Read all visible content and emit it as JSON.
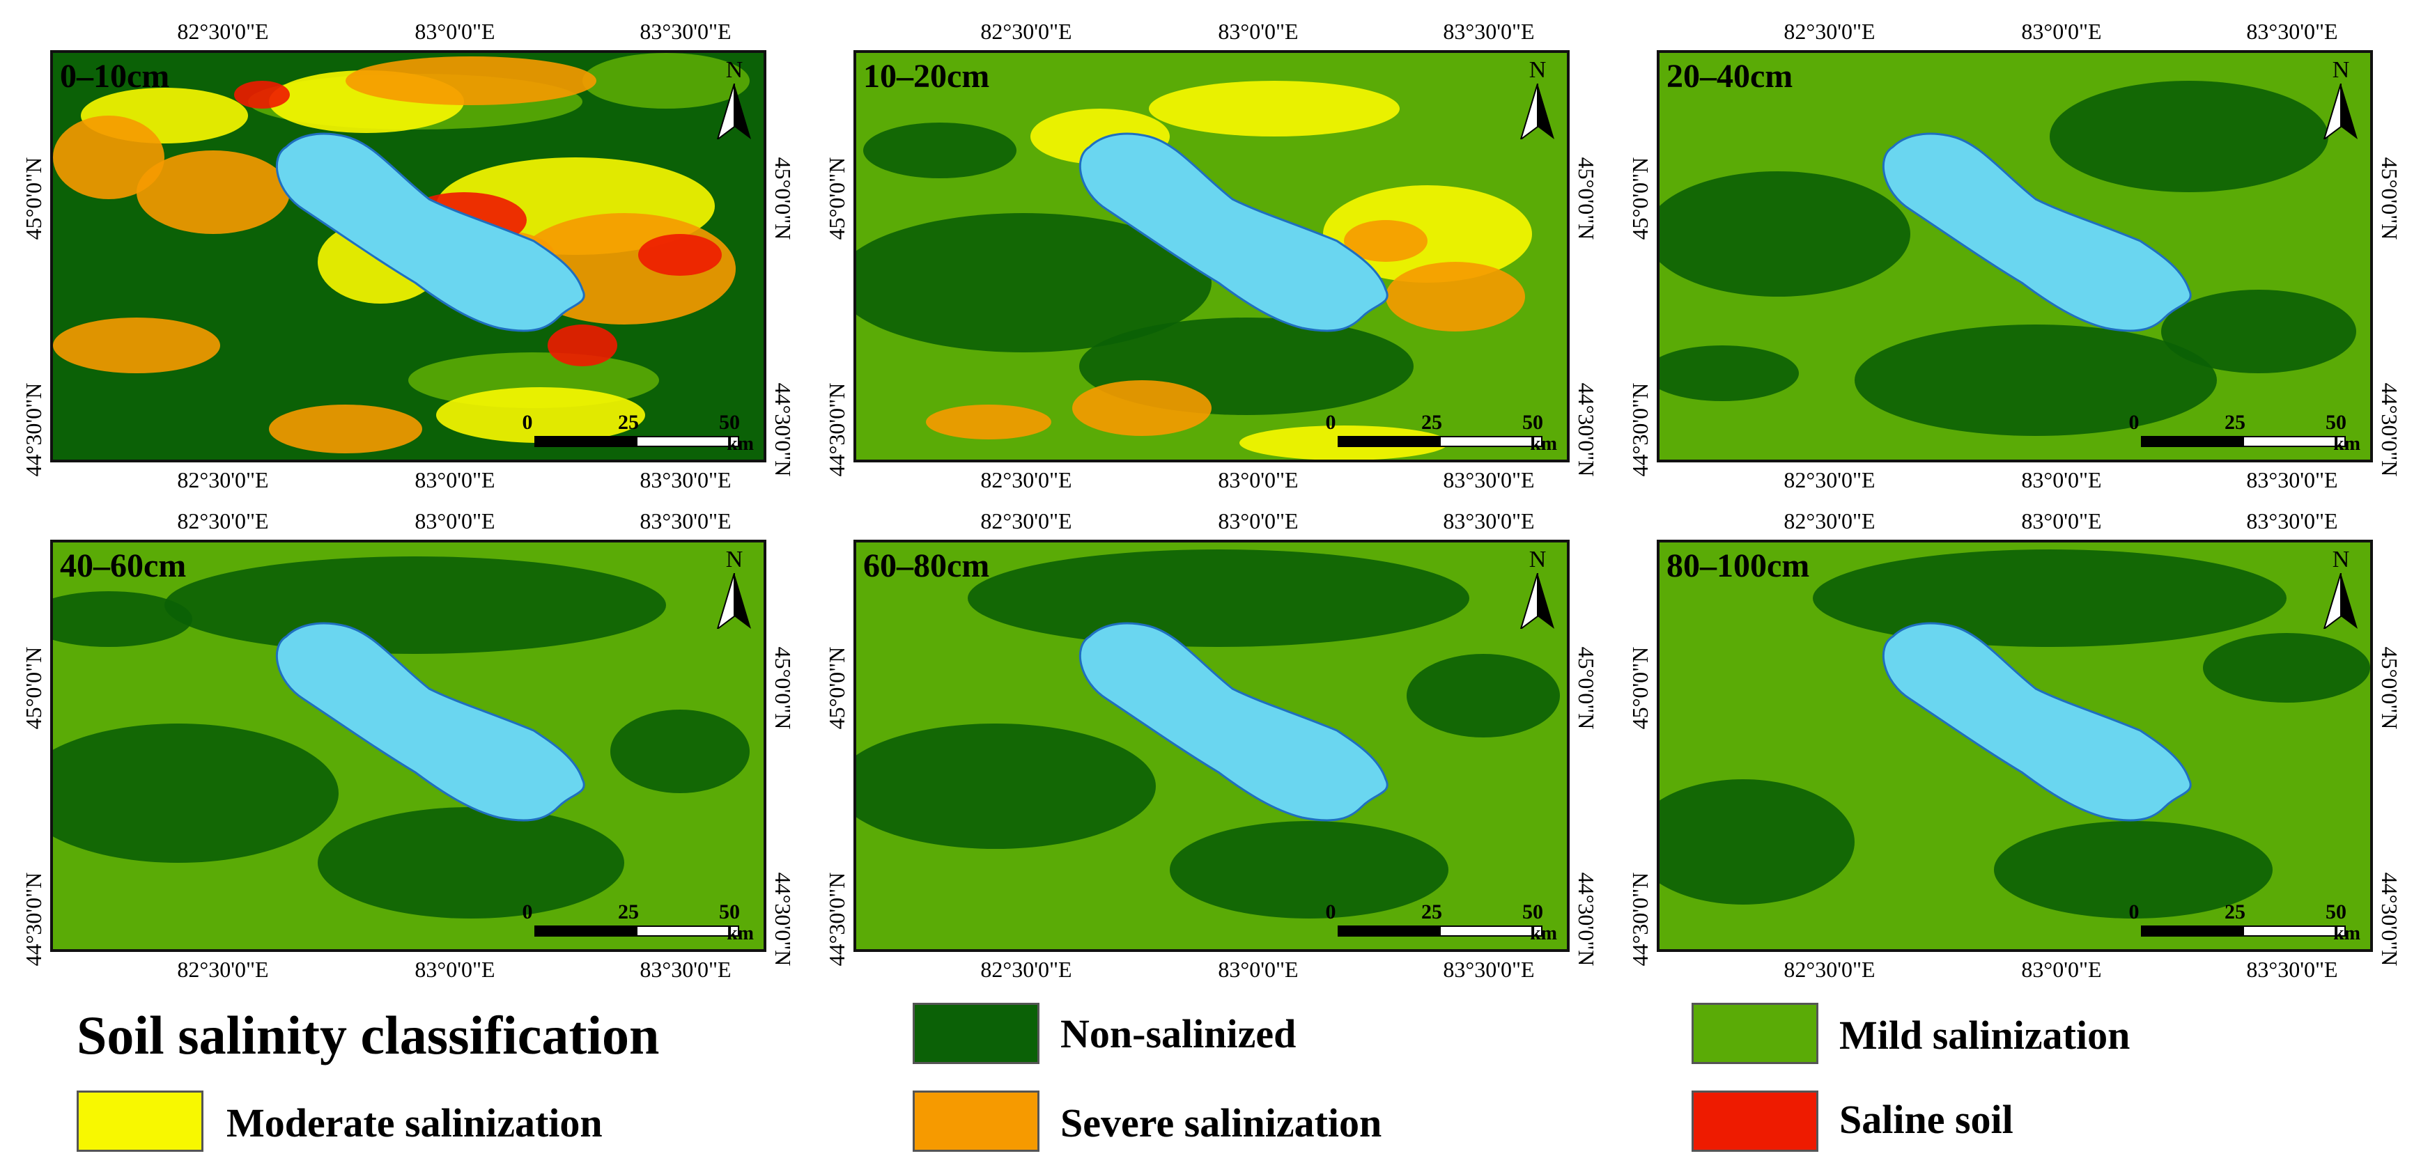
{
  "panels": [
    {
      "depth": "0–10cm",
      "scheme": 0
    },
    {
      "depth": "10–20cm",
      "scheme": 1
    },
    {
      "depth": "20–40cm",
      "scheme": 2
    },
    {
      "depth": "40–60cm",
      "scheme": 3
    },
    {
      "depth": "60–80cm",
      "scheme": 4
    },
    {
      "depth": "80–100cm",
      "scheme": 5
    }
  ],
  "north_label": "N",
  "scale_bar": {
    "labels": [
      "0",
      "25",
      "50"
    ],
    "unit": "km"
  },
  "axes": {
    "lon_labels": [
      "82°30'0\"E",
      "83°0'0\"E",
      "83°30'0\"E"
    ],
    "lat_labels": [
      "45°0'0\"N",
      "44°30'0\"N"
    ]
  },
  "legend": {
    "title": "Soil salinity classification",
    "items": [
      {
        "label": "Non-salinized",
        "color": "#0b6106"
      },
      {
        "label": "Mild salinization",
        "color": "#5aab06"
      },
      {
        "label": "Moderate salinization",
        "color": "#f8f800"
      },
      {
        "label": "Severe salinization",
        "color": "#f69a00"
      },
      {
        "label": "Saline soil",
        "color": "#ee1b00"
      }
    ]
  },
  "colors": {
    "water": "#6ad6f0",
    "lake_outline": "#1f6fc0",
    "non_salinized": "#0b6106",
    "mild": "#5aab06",
    "moderate": "#f8f800",
    "severe": "#f69a00",
    "saline": "#ee1b00"
  }
}
